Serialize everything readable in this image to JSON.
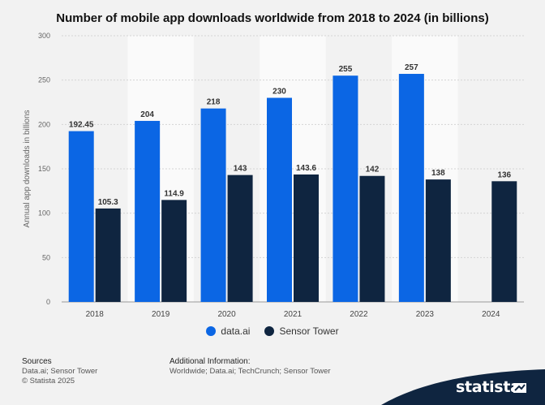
{
  "chart_data": {
    "type": "bar",
    "title": "Number of mobile app downloads worldwide from 2018 to 2024 (in billions)",
    "xlabel": "",
    "ylabel": "Annual app downloads in billions",
    "categories": [
      "2018",
      "2019",
      "2020",
      "2021",
      "2022",
      "2023",
      "2024"
    ],
    "ylim": [
      0,
      300
    ],
    "yticks": [
      0,
      50,
      100,
      150,
      200,
      250,
      300
    ],
    "grid": true,
    "legend_position": "bottom",
    "series": [
      {
        "name": "data.ai",
        "color": "#0b66e4",
        "values": [
          192.45,
          204,
          218,
          230,
          255,
          257,
          null
        ],
        "labels": [
          "192.45",
          "204",
          "218",
          "230",
          "255",
          "257",
          ""
        ]
      },
      {
        "name": "Sensor Tower",
        "color": "#0f2540",
        "values": [
          105.3,
          114.9,
          143,
          143.6,
          142,
          138,
          136
        ],
        "labels": [
          "105.3",
          "114.9",
          "143",
          "143.6",
          "142",
          "138",
          "136"
        ]
      }
    ]
  },
  "footer": {
    "sources_heading": "Sources",
    "sources_text": "Data.ai; Sensor Tower",
    "copyright": "© Statista 2025",
    "additional_heading": "Additional Information:",
    "additional_text": "Worldwide; Data.ai; TechCrunch; Sensor Tower"
  },
  "brand": {
    "name": "statista",
    "color": "#0f2540"
  }
}
